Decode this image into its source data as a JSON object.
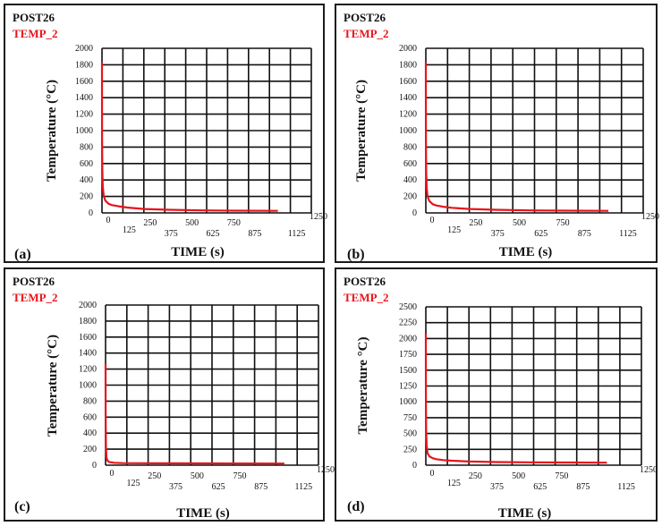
{
  "chart_data": [
    {
      "type": "line",
      "program_label": "POST26",
      "series": [
        {
          "name": "TEMP_2",
          "color": "#e8141b",
          "x": [
            0,
            0.5,
            2,
            5,
            10,
            20,
            40,
            60,
            100,
            150,
            250,
            400,
            600,
            800,
            1050
          ],
          "y": [
            1830,
            900,
            520,
            320,
            210,
            150,
            110,
            95,
            80,
            65,
            48,
            38,
            30,
            27,
            25
          ]
        }
      ],
      "xlabel": "TIME (s)",
      "ylabel": "Temperature (°C)",
      "xlim": [
        0,
        1250
      ],
      "ylim": [
        0,
        2000
      ],
      "x_ticks": [
        "0",
        "125",
        "250",
        "375",
        "500",
        "625",
        "750",
        "875",
        "1125",
        "1250"
      ],
      "y_ticks": [
        "0",
        "200",
        "400",
        "600",
        "800",
        "1000",
        "1200",
        "1400",
        "1600",
        "1800",
        "2000"
      ],
      "panel_label": "(a)",
      "grid": true
    },
    {
      "type": "line",
      "program_label": "POST26",
      "series": [
        {
          "name": "TEMP_2",
          "color": "#e8141b",
          "x": [
            0,
            0.5,
            2,
            5,
            10,
            20,
            40,
            60,
            100,
            150,
            250,
            400,
            600,
            800,
            1050
          ],
          "y": [
            1830,
            900,
            500,
            300,
            200,
            145,
            105,
            90,
            75,
            62,
            48,
            38,
            30,
            27,
            25
          ]
        }
      ],
      "xlabel": "TIME (s)",
      "ylabel": "Temperature (°C)",
      "xlim": [
        0,
        1250
      ],
      "ylim": [
        0,
        2000
      ],
      "x_ticks": [
        "0",
        "125",
        "250",
        "375",
        "500",
        "625",
        "750",
        "875",
        "1125",
        "1250"
      ],
      "y_ticks": [
        "0",
        "200",
        "400",
        "600",
        "800",
        "1000",
        "1200",
        "1400",
        "1600",
        "1800",
        "2000"
      ],
      "panel_label": "(b)",
      "grid": true
    },
    {
      "type": "line",
      "program_label": "POST26",
      "series": [
        {
          "name": "TEMP_2",
          "color": "#e8141b",
          "x": [
            0,
            0.5,
            2,
            5,
            10,
            20,
            50,
            100,
            300,
            600,
            1050
          ],
          "y": [
            1270,
            600,
            250,
            100,
            60,
            40,
            30,
            26,
            24,
            22,
            20
          ]
        }
      ],
      "xlabel": "TIME (s)",
      "ylabel": "Temperature (°C)",
      "xlim": [
        0,
        1250
      ],
      "ylim": [
        0,
        2000
      ],
      "x_ticks": [
        "0",
        "125",
        "250",
        "375",
        "500",
        "625",
        "750",
        "875",
        "1125",
        "1250"
      ],
      "y_ticks": [
        "0",
        "200",
        "400",
        "600",
        "800",
        "1000",
        "1200",
        "1400",
        "1600",
        "1800",
        "2000"
      ],
      "panel_label": "(c)",
      "grid": true
    },
    {
      "type": "line",
      "program_label": "POST26",
      "series": [
        {
          "name": "TEMP_2",
          "color": "#e8141b",
          "x": [
            0,
            0.5,
            2,
            5,
            10,
            20,
            40,
            60,
            100,
            150,
            250,
            400,
            600,
            800,
            1050
          ],
          "y": [
            2080,
            1000,
            520,
            300,
            190,
            140,
            110,
            95,
            80,
            70,
            58,
            50,
            45,
            42,
            40
          ]
        }
      ],
      "xlabel": "TIME (s)",
      "ylabel": "Temperature °C)",
      "xlim": [
        0,
        1250
      ],
      "ylim": [
        0,
        2500
      ],
      "x_ticks": [
        "0",
        "125",
        "250",
        "375",
        "500",
        "625",
        "750",
        "875",
        "1125",
        "1250"
      ],
      "y_ticks": [
        "0",
        "250",
        "500",
        "750",
        "1000",
        "1250",
        "1500",
        "1750",
        "2000",
        "2250",
        "2500"
      ],
      "panel_label": "(d)",
      "grid": true
    }
  ]
}
